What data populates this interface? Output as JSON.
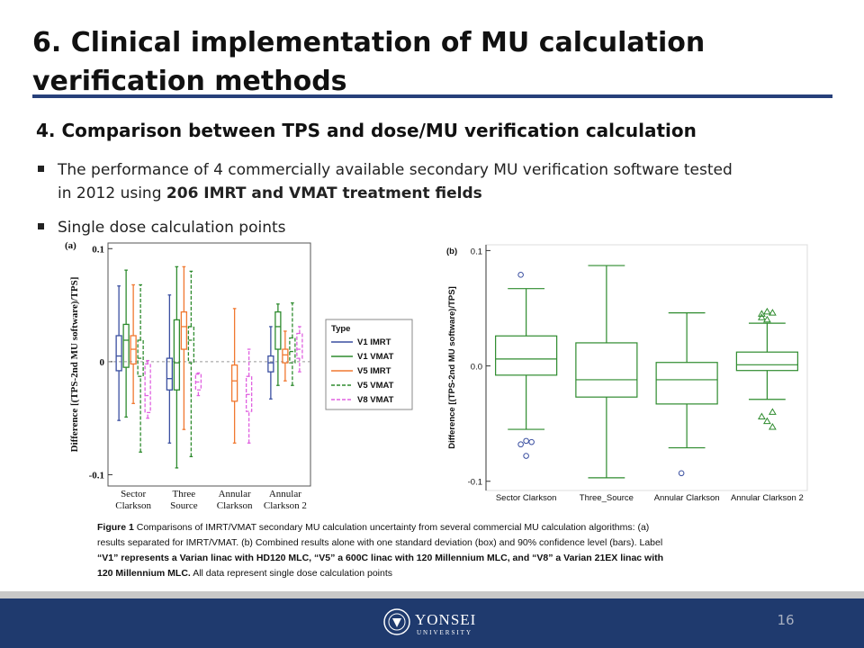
{
  "header": {
    "title_lines": [
      "6. Clinical implementation of MU calculation",
      "verification methods"
    ]
  },
  "section": "4. Comparison between TPS and dose/MU verification calculation",
  "bullets": [
    [
      [
        {
          "text": "The performance of 4 commercially available secondary MU verification software tested",
          "bold": false
        }
      ],
      [
        {
          "text": "in 2012 using ",
          "bold": false
        },
        {
          "text": "206 IMRT and VMAT treatment fields",
          "bold": true
        }
      ]
    ],
    [
      [
        {
          "text": "Single dose calculation points",
          "bold": false
        }
      ]
    ]
  ],
  "figures": [
    {
      "type": "box",
      "label": "(a)",
      "ylabel": "Difference [(TPS-2nd MU software)/TPS]",
      "ylim": [
        -0.11,
        0.105
      ],
      "yticks": [
        0.1,
        0,
        -0.1
      ],
      "zero_line": true,
      "legend_title": "Type",
      "categories": [
        [
          "Sector",
          "Clarkson"
        ],
        [
          "Three",
          "Source"
        ],
        [
          "Annular",
          "Clarkson"
        ],
        [
          "Annular",
          "Clarkson 2"
        ]
      ],
      "series": [
        {
          "name": "V1 IMRT",
          "color": "#3a4fa0",
          "dash": false,
          "boxes": [
            [
              -0.052,
              -0.008,
              0.005,
              0.023,
              0.067
            ],
            [
              -0.072,
              -0.025,
              -0.015,
              0.003,
              0.059
            ],
            null,
            [
              -0.033,
              -0.009,
              -0.001,
              0.005,
              0.031
            ]
          ]
        },
        {
          "name": "V1 VMAT",
          "color": "#2e8b2e",
          "dash": false,
          "boxes": [
            [
              -0.049,
              -0.005,
              0.019,
              0.033,
              0.081
            ],
            [
              -0.094,
              -0.025,
              -0.001,
              0.037,
              0.084
            ],
            null,
            [
              -0.021,
              0.011,
              0.031,
              0.044,
              0.051
            ]
          ]
        },
        {
          "name": "V5 IMRT",
          "color": "#f07830",
          "dash": false,
          "boxes": [
            [
              -0.037,
              -0.002,
              0.011,
              0.023,
              0.068
            ],
            [
              -0.06,
              0.011,
              0.031,
              0.044,
              0.084
            ],
            [
              -0.072,
              -0.035,
              -0.017,
              -0.003,
              0.047
            ],
            [
              -0.017,
              -0.001,
              0.006,
              0.011,
              0.027
            ]
          ]
        },
        {
          "name": "V5 VMAT",
          "color": "#2e8b2e",
          "dash": true,
          "boxes": [
            [
              -0.08,
              -0.013,
              0.003,
              0.019,
              0.068
            ],
            [
              -0.084,
              -0.001,
              0.019,
              0.031,
              0.08
            ],
            null,
            [
              -0.021,
              -0.001,
              0.009,
              0.021,
              0.052
            ]
          ]
        },
        {
          "name": "V8 VMAT",
          "color": "#e060e0",
          "dash": true,
          "boxes": [
            [
              -0.05,
              -0.045,
              -0.03,
              -0.002,
              0.001
            ],
            [
              -0.03,
              -0.025,
              -0.018,
              -0.011,
              -0.01
            ],
            [
              -0.072,
              -0.044,
              -0.029,
              -0.013,
              0.011
            ],
            [
              -0.009,
              0.003,
              0.011,
              0.025,
              0.031
            ]
          ]
        }
      ]
    },
    {
      "type": "box",
      "label": "(b)",
      "ylabel": "Difference [(TPS-2nd MU software)/TPS]",
      "ylim": [
        -0.108,
        0.105
      ],
      "yticks": [
        0.1,
        {
          "value": 0,
          "label": "0.0"
        },
        -0.1
      ],
      "zero_line": false,
      "color": "#2e8b2e",
      "categories": [
        "Sector Clarkson",
        "Three_Source",
        "Annular Clarkson",
        "Annular Clarkson 2"
      ],
      "boxes": [
        [
          -0.055,
          -0.008,
          0.006,
          0.026,
          0.067
        ],
        [
          -0.097,
          -0.027,
          -0.012,
          0.02,
          0.087
        ],
        [
          -0.071,
          -0.033,
          -0.012,
          0.003,
          0.046
        ],
        [
          -0.029,
          -0.004,
          0.001,
          0.012,
          0.037
        ]
      ],
      "outliers": [
        [
          0.079,
          -0.065,
          -0.066,
          -0.068,
          -0.078
        ],
        [],
        [
          -0.093
        ],
        [
          0.045,
          0.047,
          0.046,
          0.042,
          0.04,
          -0.04,
          -0.044,
          -0.048,
          -0.053
        ]
      ],
      "outlier_marker": [
        "circle",
        "circle",
        "circle",
        "triangle"
      ]
    }
  ],
  "caption": {
    "lines": [
      [
        {
          "text": "Figure 1",
          "bold": true
        },
        {
          "text": " Comparisons of IMRT/VMAT secondary MU calculation uncertainty from several commercial MU calculation algorithms: (a)",
          "bold": false
        }
      ],
      [
        {
          "text": "results separated for IMRT/VMAT. (b) Combined results alone with one standard deviation (box) and 90% confidence level (bars). Label",
          "bold": false
        }
      ],
      [
        {
          "text": "“V1” represents a Varian linac with HD120 MLC, “V5” a 600C linac with 120 Millennium MLC, and “V8” a Varian 21EX linac with",
          "bold": true
        }
      ],
      [
        {
          "text": "120 Millennium MLC.",
          "bold": true
        },
        {
          "text": " All data represent single dose calculation points",
          "bold": false
        }
      ]
    ]
  },
  "footer": {
    "logo_name": "YONSEI",
    "logo_sub": "UNIVERSITY",
    "page": "16"
  }
}
